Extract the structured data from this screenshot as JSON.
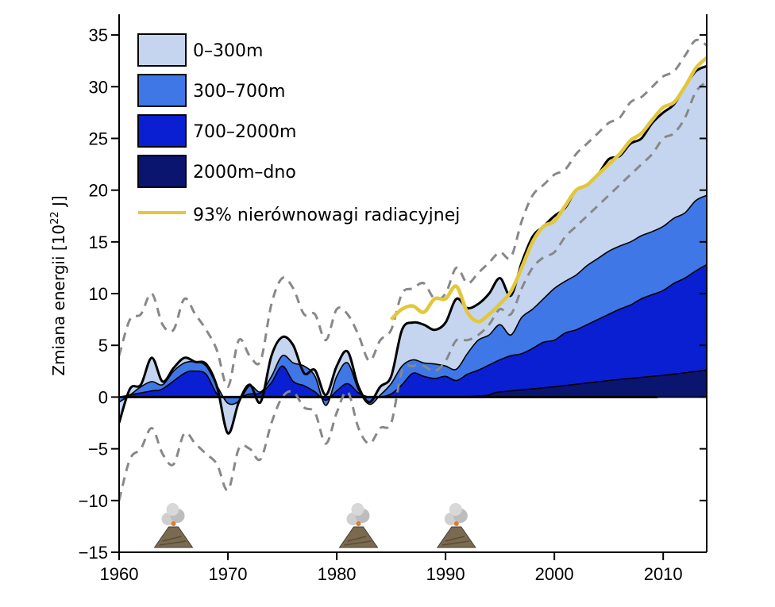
{
  "chart_data": {
    "type": "area",
    "title": "",
    "xlabel": "",
    "ylabel_prefix": "Zmiana energii [10",
    "ylabel_sup": "22",
    "ylabel_suffix": " J]",
    "xlim": [
      1960,
      2014
    ],
    "ylim": [
      -15,
      37
    ],
    "xticks": [
      1960,
      1970,
      1980,
      1990,
      2000,
      2010
    ],
    "xtick_labels": [
      "1960",
      "1970",
      "1980",
      "1990",
      "2000",
      "2010"
    ],
    "yticks": [
      -15,
      -10,
      -5,
      0,
      5,
      10,
      15,
      20,
      25,
      30,
      35
    ],
    "ytick_labels": [
      "−15",
      "−10",
      "−5",
      "0",
      "5",
      "10",
      "15",
      "20",
      "25",
      "30",
      "35"
    ],
    "legend_position": "top-left",
    "legend": [
      {
        "label": "0–300m",
        "color": "#c5d5ef",
        "kind": "patch"
      },
      {
        "label": "300–700m",
        "color": "#3f77e6",
        "kind": "patch"
      },
      {
        "label": "700–2000m",
        "color": "#0a1fd1",
        "kind": "patch"
      },
      {
        "label": "2000m–dno",
        "color": "#0a1570",
        "kind": "patch"
      },
      {
        "label": "93% nierównowagi radiacyjnej",
        "color": "#e2c73a",
        "kind": "line"
      }
    ],
    "series": [
      {
        "name": "2000m–dno",
        "color": "#0a1570",
        "x": [
          1960,
          1990,
          1995,
          2000,
          2005,
          2010,
          2014
        ],
        "y": [
          0,
          0,
          0.5,
          1.0,
          1.6,
          2.1,
          2.6
        ]
      },
      {
        "name": "700–2000m",
        "color": "#0a1fd1",
        "x": [
          1960,
          1961,
          1963,
          1964,
          1966,
          1967,
          1968,
          1969,
          1970,
          1971,
          1972,
          1973,
          1974,
          1975,
          1976,
          1977,
          1978,
          1979,
          1980,
          1981,
          1982,
          1983,
          1984,
          1985,
          1986,
          1987,
          1988,
          1989,
          1990,
          1991,
          1992,
          1993,
          1994,
          1995,
          1996,
          1997,
          1998,
          1999,
          2000,
          2001,
          2002,
          2003,
          2004,
          2005,
          2006,
          2007,
          2008,
          2009,
          2010,
          2011,
          2012,
          2013,
          2014
        ],
        "y": [
          0,
          0.2,
          0.6,
          0.8,
          2.3,
          2.5,
          2.2,
          0.3,
          0,
          0,
          0.3,
          0.4,
          1.4,
          3.0,
          1.5,
          1.1,
          0.5,
          -0.3,
          0.6,
          1.3,
          0.4,
          0,
          0,
          0.3,
          1.2,
          2.3,
          2.0,
          1.8,
          2.0,
          1.6,
          2.2,
          2.6,
          3.1,
          3.6,
          4.0,
          4.2,
          4.7,
          5.3,
          5.5,
          6.2,
          6.5,
          7.0,
          7.5,
          8.0,
          8.5,
          8.9,
          9.5,
          9.9,
          10.3,
          11.0,
          11.5,
          12.2,
          12.8
        ]
      },
      {
        "name": "300–700m",
        "color": "#3f77e6",
        "x": [
          1960,
          1961,
          1962,
          1963,
          1964,
          1965,
          1966,
          1967,
          1968,
          1969,
          1970,
          1971,
          1972,
          1973,
          1974,
          1975,
          1976,
          1977,
          1978,
          1979,
          1980,
          1981,
          1982,
          1983,
          1984,
          1985,
          1986,
          1987,
          1988,
          1989,
          1990,
          1991,
          1992,
          1993,
          1994,
          1995,
          1996,
          1997,
          1998,
          1999,
          2000,
          2001,
          2002,
          2003,
          2004,
          2005,
          2006,
          2007,
          2008,
          2009,
          2010,
          2011,
          2012,
          2013,
          2014
        ],
        "y": [
          -0.5,
          0.2,
          1.0,
          1.5,
          1.2,
          2.5,
          3.3,
          3.4,
          3.0,
          1.1,
          -0.6,
          -0.4,
          1.1,
          0.5,
          2.0,
          4.0,
          3.3,
          3.0,
          2.0,
          -0.8,
          2.0,
          3.3,
          0.7,
          -0.7,
          0.2,
          1.3,
          3.0,
          3.6,
          3.3,
          3.2,
          3.0,
          2.7,
          4.2,
          5.5,
          6.0,
          7.0,
          6.0,
          7.7,
          8.5,
          9.5,
          10.5,
          11.2,
          11.8,
          12.7,
          13.4,
          14.1,
          14.6,
          15.0,
          15.6,
          16.0,
          16.5,
          17.3,
          17.8,
          19.0,
          19.5
        ]
      },
      {
        "name": "0–300m",
        "color": "#c5d5ef",
        "x": [
          1960,
          1961,
          1962,
          1963,
          1964,
          1965,
          1966,
          1967,
          1968,
          1969,
          1970,
          1971,
          1972,
          1973,
          1974,
          1975,
          1976,
          1977,
          1978,
          1979,
          1980,
          1981,
          1982,
          1983,
          1984,
          1985,
          1986,
          1987,
          1988,
          1989,
          1990,
          1991,
          1992,
          1993,
          1994,
          1995,
          1996,
          1997,
          1998,
          1999,
          2000,
          2001,
          2002,
          2003,
          2004,
          2005,
          2006,
          2007,
          2008,
          2009,
          2010,
          2011,
          2012,
          2013,
          2014
        ],
        "y": [
          -2.5,
          0.8,
          1.2,
          3.8,
          1.5,
          2.8,
          3.8,
          3.4,
          3.2,
          1.0,
          -3.5,
          -0.5,
          1.2,
          -0.5,
          4.0,
          5.8,
          5.0,
          2.3,
          2.6,
          0.2,
          3.0,
          4.4,
          1.0,
          -0.5,
          1.0,
          2.0,
          6.5,
          7.2,
          7.0,
          6.5,
          7.2,
          9.5,
          8.6,
          9.0,
          10.0,
          11.5,
          9.8,
          13.0,
          15.5,
          16.5,
          17.5,
          18.3,
          20.0,
          20.5,
          21.5,
          23.0,
          23.3,
          24.5,
          25.0,
          26.5,
          27.5,
          28.3,
          30.0,
          31.5,
          32.0
        ]
      },
      {
        "name": "upper uncertainty",
        "color": "#888888",
        "x": [
          1960,
          1961,
          1962,
          1963,
          1964,
          1965,
          1966,
          1967,
          1968,
          1969,
          1970,
          1971,
          1972,
          1973,
          1974,
          1975,
          1976,
          1977,
          1978,
          1979,
          1980,
          1981,
          1982,
          1983,
          1984,
          1985,
          1986,
          1987,
          1988,
          1989,
          1990,
          1991,
          1992,
          1993,
          1994,
          1995,
          1996,
          1997,
          1998,
          1999,
          2000,
          2001,
          2002,
          2003,
          2004,
          2005,
          2006,
          2007,
          2008,
          2009,
          2010,
          2011,
          2012,
          2013,
          2014
        ],
        "y": [
          4.0,
          7.5,
          8.0,
          10.0,
          7.0,
          6.5,
          9.5,
          8.0,
          6.5,
          4.5,
          1.0,
          5.5,
          4.0,
          3.5,
          9.0,
          11.5,
          10.5,
          8.0,
          8.0,
          5.5,
          8.5,
          8.0,
          6.0,
          3.5,
          5.5,
          6.5,
          10.0,
          10.5,
          11.0,
          9.5,
          10.0,
          12.5,
          11.0,
          12.0,
          13.0,
          14.0,
          13.5,
          17.0,
          19.5,
          20.5,
          21.5,
          22.0,
          23.5,
          24.5,
          25.5,
          26.5,
          27.0,
          28.5,
          29.0,
          30.0,
          31.0,
          31.5,
          33.0,
          34.5,
          34.0
        ]
      },
      {
        "name": "lower uncertainty",
        "color": "#888888",
        "x": [
          1960,
          1961,
          1962,
          1963,
          1964,
          1965,
          1966,
          1967,
          1968,
          1969,
          1970,
          1971,
          1972,
          1973,
          1974,
          1975,
          1976,
          1977,
          1978,
          1979,
          1980,
          1981,
          1982,
          1983,
          1984,
          1985,
          1986,
          1987,
          1988,
          1989,
          1990,
          1991,
          1992,
          1993,
          1994,
          1995,
          1996,
          1997,
          1998,
          1999,
          2000,
          2001,
          2002,
          2003,
          2004,
          2005,
          2006,
          2007,
          2008,
          2009,
          2010,
          2011,
          2012,
          2013,
          2014
        ],
        "y": [
          -10.0,
          -6.0,
          -5.0,
          -3.0,
          -5.5,
          -6.5,
          -3.5,
          -4.5,
          -5.5,
          -6.5,
          -9.0,
          -5.0,
          -5.0,
          -6.0,
          -2.5,
          0.0,
          0.5,
          -1.0,
          -1.5,
          -4.5,
          -1.5,
          0.5,
          -3.0,
          -4.5,
          -3.0,
          -2.5,
          2.5,
          3.0,
          3.0,
          2.5,
          3.5,
          5.5,
          5.5,
          6.0,
          7.0,
          8.5,
          8.0,
          10.5,
          12.5,
          13.5,
          14.0,
          15.5,
          16.5,
          17.5,
          18.5,
          19.5,
          20.5,
          21.5,
          22.5,
          23.5,
          25.0,
          25.5,
          27.0,
          29.5,
          30.5
        ]
      },
      {
        "name": "93% nierównowagi radiacyjnej",
        "color": "#e2c73a",
        "x": [
          1985,
          1986,
          1987,
          1988,
          1989,
          1990,
          1991,
          1992,
          1993,
          1994,
          1995,
          1996,
          1997,
          1998,
          1999,
          2000,
          2001,
          2002,
          2003,
          2004,
          2005,
          2006,
          2007,
          2008,
          2009,
          2010,
          2011,
          2012,
          2013,
          2014
        ],
        "y": [
          7.5,
          8.5,
          8.8,
          8.2,
          9.5,
          9.5,
          10.7,
          8.2,
          7.3,
          8.0,
          9.0,
          10.2,
          12.5,
          15.0,
          16.5,
          17.0,
          18.5,
          20.0,
          20.5,
          21.5,
          22.5,
          23.5,
          24.8,
          25.5,
          26.8,
          28.0,
          28.5,
          30.0,
          31.8,
          32.8
        ]
      }
    ],
    "volcanoes": [
      1965,
      1982,
      1991
    ]
  }
}
